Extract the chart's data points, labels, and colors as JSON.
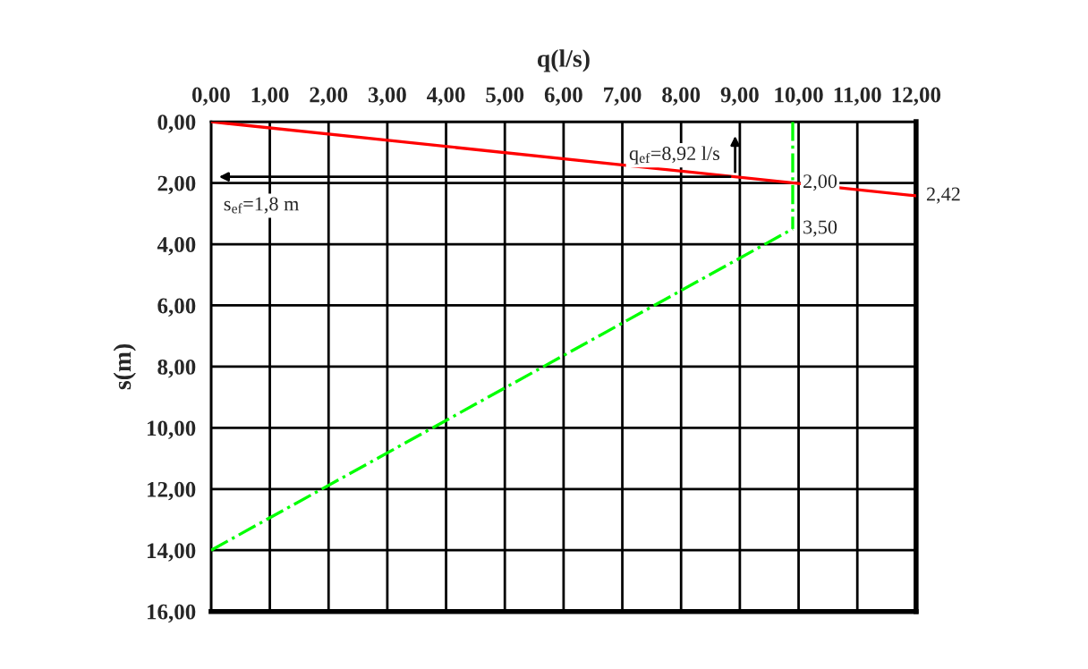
{
  "chart_data": {
    "type": "line",
    "xlabel": "q(l/s)",
    "ylabel": "s(m)",
    "series": [
      {
        "color": "#ff0000",
        "x": [
          0,
          12
        ],
        "values": [
          0,
          2.42
        ],
        "line_style": "solid"
      },
      {
        "color": "#00ff00",
        "x": [
          0,
          9.9
        ],
        "values": [
          14,
          3.5
        ],
        "line_style": "dashdot"
      },
      {
        "color": "#00ff00",
        "x": [
          9.9,
          9.9
        ],
        "values": [
          0,
          3.5
        ],
        "line_style": "dashdot"
      }
    ],
    "xlim": [
      0,
      12
    ],
    "ylim": [
      16,
      0
    ],
    "xticks": [
      {
        "value": 0,
        "label": "0,00"
      },
      {
        "value": 1,
        "label": "1,00"
      },
      {
        "value": 2,
        "label": "2,00"
      },
      {
        "value": 3,
        "label": "3,00"
      },
      {
        "value": 4,
        "label": "4,00"
      },
      {
        "value": 5,
        "label": "5,00"
      },
      {
        "value": 6,
        "label": "6,00"
      },
      {
        "value": 7,
        "label": "7,00"
      },
      {
        "value": 8,
        "label": "8,00"
      },
      {
        "value": 9,
        "label": "9,00"
      },
      {
        "value": 10,
        "label": "10,00"
      },
      {
        "value": 11,
        "label": "11,00"
      },
      {
        "value": 12,
        "label": "12,00"
      }
    ],
    "yticks": [
      {
        "value": 0,
        "label": "0,00"
      },
      {
        "value": 2,
        "label": "2,00"
      },
      {
        "value": 4,
        "label": "4,00"
      },
      {
        "value": 6,
        "label": "6,00"
      },
      {
        "value": 8,
        "label": "8,00"
      },
      {
        "value": 10,
        "label": "10,00"
      },
      {
        "value": 12,
        "label": "12,00"
      },
      {
        "value": 14,
        "label": "14,00"
      },
      {
        "value": 16,
        "label": "16,00"
      }
    ],
    "grid": true,
    "marker": "none",
    "annotations": [
      {
        "text": "q$_{ef}$=8,92 l/s",
        "x": 8.92,
        "y": 1.8
      },
      "s$_{ef}$=1,8 m",
      {
        "text": "2,00",
        "x": 9.9,
        "y": 2.0
      },
      {
        "text": "3,50",
        "x": 9.9,
        "y": 3.5
      },
      {
        "text": "2,42",
        "x": 12,
        "y": 2.42
      }
    ]
  }
}
